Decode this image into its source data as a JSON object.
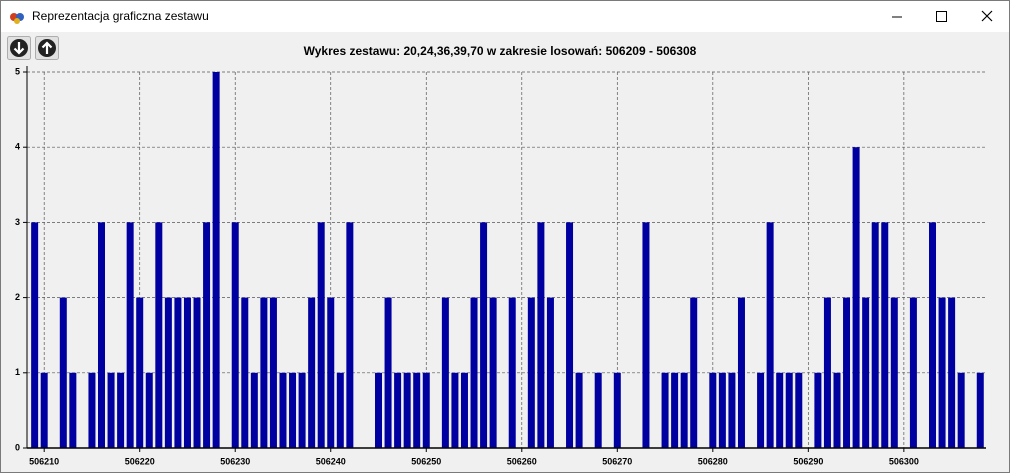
{
  "window_title": "Reprezentacja graficzna zestawu",
  "chart_data": {
    "type": "bar",
    "title": "Wykres zestawu: 20,24,36,39,70 w zakresie losowań: 506209 - 506308",
    "x": [
      506209,
      506210,
      506211,
      506212,
      506213,
      506214,
      506215,
      506216,
      506217,
      506218,
      506219,
      506220,
      506221,
      506222,
      506223,
      506224,
      506225,
      506226,
      506227,
      506228,
      506229,
      506230,
      506231,
      506232,
      506233,
      506234,
      506235,
      506236,
      506237,
      506238,
      506239,
      506240,
      506241,
      506242,
      506243,
      506244,
      506245,
      506246,
      506247,
      506248,
      506249,
      506250,
      506251,
      506252,
      506253,
      506254,
      506255,
      506256,
      506257,
      506258,
      506259,
      506260,
      506261,
      506262,
      506263,
      506264,
      506265,
      506266,
      506267,
      506268,
      506269,
      506270,
      506271,
      506272,
      506273,
      506274,
      506275,
      506276,
      506277,
      506278,
      506279,
      506280,
      506281,
      506282,
      506283,
      506284,
      506285,
      506286,
      506287,
      506288,
      506289,
      506290,
      506291,
      506292,
      506293,
      506294,
      506295,
      506296,
      506297,
      506298,
      506299,
      506300,
      506301,
      506302,
      506303,
      506304,
      506305,
      506306,
      506307,
      506308
    ],
    "values": [
      3,
      1,
      0,
      2,
      1,
      0,
      1,
      3,
      1,
      1,
      3,
      2,
      1,
      3,
      2,
      2,
      2,
      2,
      3,
      5,
      0,
      3,
      2,
      1,
      2,
      2,
      1,
      1,
      1,
      2,
      3,
      2,
      1,
      3,
      0,
      0,
      1,
      2,
      1,
      1,
      1,
      1,
      0,
      2,
      1,
      1,
      2,
      3,
      2,
      0,
      2,
      0,
      2,
      3,
      2,
      0,
      3,
      1,
      0,
      1,
      0,
      1,
      0,
      0,
      3,
      0,
      1,
      1,
      1,
      2,
      0,
      1,
      1,
      1,
      2,
      0,
      1,
      3,
      1,
      1,
      1,
      0,
      1,
      2,
      1,
      2,
      4,
      2,
      3,
      3,
      2,
      0,
      2,
      0,
      3,
      2,
      2,
      1,
      0,
      1
    ],
    "color": "#0000a0",
    "xlim": [
      506208.2,
      506308.6
    ],
    "xticks": [
      506210,
      506220,
      506230,
      506240,
      506250,
      506260,
      506270,
      506280,
      506290,
      506300
    ],
    "ylim": [
      0,
      5
    ],
    "yticks": [
      0,
      1,
      2,
      3,
      4,
      5
    ],
    "grid": true
  }
}
